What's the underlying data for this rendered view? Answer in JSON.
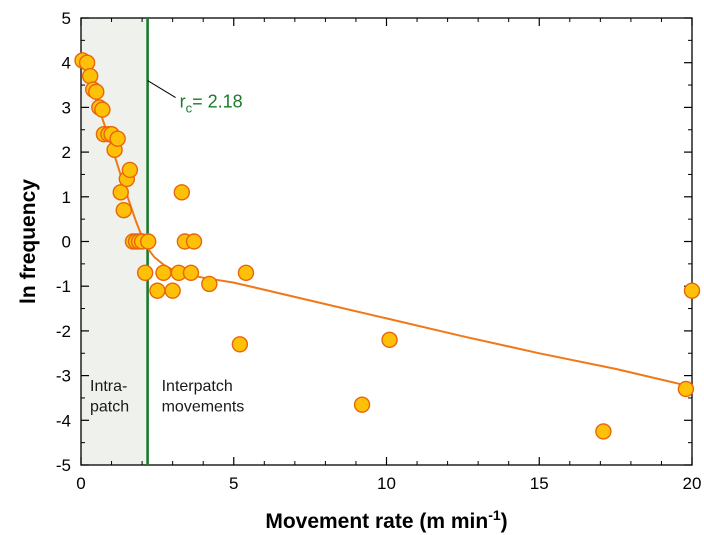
{
  "chart_data": {
    "type": "scatter",
    "xlabel_main": "Movement rate (m min",
    "xlabel_sup": "-1",
    "xlabel_close": ")",
    "ylabel": "ln frequency",
    "xlim": [
      0,
      20
    ],
    "ylim": [
      -5,
      5
    ],
    "x_ticks": [
      "0",
      "5",
      "10",
      "15",
      "20"
    ],
    "y_ticks": [
      "5",
      "4",
      "3",
      "2",
      "1",
      "0",
      "-1",
      "-2",
      "-3",
      "-4",
      "-5"
    ],
    "grid": false,
    "threshold": {
      "value": 2.18,
      "label_r": "r",
      "label_sub": "c",
      "label_rest": "= 2.18",
      "color": "#1a7a2a"
    },
    "regions": {
      "intra_line1": "Intra-",
      "intra_line2": "patch",
      "inter_line1": "Interpatch",
      "inter_line2": "movements",
      "intra_fill": "#eef1ec"
    },
    "point_color": "#ffc107",
    "point_stroke": "#e8650a",
    "fit_color": "#f07818",
    "points": [
      [
        0.05,
        4.05
      ],
      [
        0.2,
        4.0
      ],
      [
        0.3,
        3.7
      ],
      [
        0.4,
        3.4
      ],
      [
        0.5,
        3.35
      ],
      [
        0.6,
        3.0
      ],
      [
        0.7,
        2.95
      ],
      [
        0.75,
        2.4
      ],
      [
        0.9,
        2.4
      ],
      [
        1.0,
        2.4
      ],
      [
        1.1,
        2.05
      ],
      [
        1.2,
        2.3
      ],
      [
        1.3,
        1.1
      ],
      [
        1.4,
        0.7
      ],
      [
        1.5,
        1.4
      ],
      [
        1.6,
        1.6
      ],
      [
        1.7,
        0.0
      ],
      [
        1.8,
        0.0
      ],
      [
        1.9,
        0.0
      ],
      [
        2.0,
        0.0
      ],
      [
        2.1,
        -0.7
      ],
      [
        2.2,
        0.0
      ],
      [
        2.5,
        -1.1
      ],
      [
        2.7,
        -0.7
      ],
      [
        3.0,
        -1.1
      ],
      [
        3.2,
        -0.7
      ],
      [
        3.3,
        1.1
      ],
      [
        3.4,
        0.0
      ],
      [
        3.6,
        -0.7
      ],
      [
        3.7,
        0.0
      ],
      [
        4.2,
        -0.95
      ],
      [
        5.2,
        -2.3
      ],
      [
        5.4,
        -0.7
      ],
      [
        9.2,
        -3.65
      ],
      [
        10.1,
        -2.2
      ],
      [
        17.1,
        -4.25
      ],
      [
        19.8,
        -3.3
      ],
      [
        20.0,
        -1.1
      ]
    ],
    "fit_curve": [
      [
        0.0,
        4.1
      ],
      [
        0.3,
        3.55
      ],
      [
        0.6,
        2.95
      ],
      [
        0.9,
        2.35
      ],
      [
        1.2,
        1.7
      ],
      [
        1.5,
        1.05
      ],
      [
        1.8,
        0.45
      ],
      [
        2.0,
        0.1
      ],
      [
        2.18,
        -0.15
      ],
      [
        2.4,
        -0.35
      ],
      [
        2.7,
        -0.52
      ],
      [
        3.0,
        -0.63
      ],
      [
        3.5,
        -0.74
      ],
      [
        4.0,
        -0.81
      ],
      [
        5.0,
        -0.92
      ],
      [
        7.5,
        -1.32
      ],
      [
        10.0,
        -1.72
      ],
      [
        12.5,
        -2.12
      ],
      [
        15.0,
        -2.5
      ],
      [
        17.5,
        -2.85
      ],
      [
        20.0,
        -3.25
      ]
    ]
  }
}
